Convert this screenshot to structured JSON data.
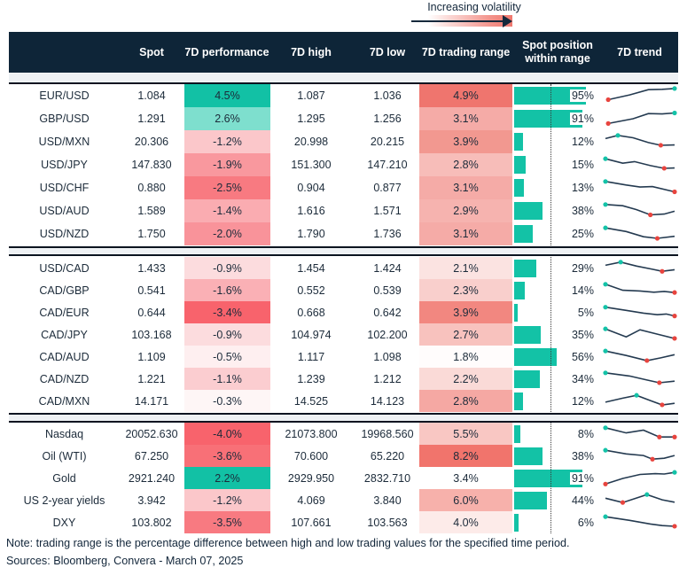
{
  "legend": {
    "label": "Increasing volatility"
  },
  "colors": {
    "header_bg": "#0e2538",
    "text": "#1c2b3a",
    "bar_teal": "#13c2a6",
    "spark_line": "#243a50",
    "spark_high_dot": "#14c3a8",
    "spark_low_dot": "#e8443e",
    "divider_band": "#eef1f4",
    "volatility_gradient": [
      "#ffffff",
      "#fbd8d5",
      "#f7b6b1",
      "#f3928a",
      "#f0776e"
    ]
  },
  "chart_data": {
    "type": "table",
    "columns": [
      "",
      "Spot",
      "7D performance",
      "7D high",
      "7D low",
      "7D trading range",
      "Spot position within range",
      "7D trend"
    ],
    "sections": [
      {
        "rows": [
          {
            "asset": "EUR/USD",
            "spot": "1.084",
            "perf": "4.5%",
            "perf_color": "#12c1a5",
            "high": "1.087",
            "low": "1.036",
            "range": "4.9%",
            "range_color": "#ef756e",
            "pos": "95%",
            "spark": [
              [
                0.04,
                0.75
              ],
              [
                0.35,
                0.45
              ],
              [
                0.62,
                0.12
              ],
              [
                0.82,
                0.1
              ],
              [
                1,
                0.05
              ]
            ]
          },
          {
            "asset": "GBP/USD",
            "spot": "1.291",
            "perf": "2.6%",
            "perf_color": "#7edfce",
            "high": "1.295",
            "low": "1.256",
            "range": "3.1%",
            "range_color": "#f5aba7",
            "pos": "91%",
            "spark": [
              [
                0.04,
                0.8
              ],
              [
                0.4,
                0.5
              ],
              [
                0.62,
                0.18
              ],
              [
                0.82,
                0.2
              ],
              [
                1,
                0.14
              ]
            ]
          },
          {
            "asset": "USD/MXN",
            "spot": "20.306",
            "perf": "-1.2%",
            "perf_color": "#fbc7ca",
            "high": "20.998",
            "low": "20.215",
            "range": "3.9%",
            "range_color": "#f29890",
            "pos": "12%",
            "spark": [
              [
                0,
                0.3
              ],
              [
                0.18,
                0.1
              ],
              [
                0.4,
                0.25
              ],
              [
                0.62,
                0.55
              ],
              [
                0.8,
                0.72
              ],
              [
                1,
                0.7
              ]
            ]
          },
          {
            "asset": "USD/JPY",
            "spot": "147.830",
            "perf": "-1.9%",
            "perf_color": "#f9989e",
            "high": "151.300",
            "low": "147.210",
            "range": "2.8%",
            "range_color": "#f7bdb9",
            "pos": "15%",
            "spark": [
              [
                0,
                0.12
              ],
              [
                0.25,
                0.4
              ],
              [
                0.42,
                0.3
              ],
              [
                0.65,
                0.55
              ],
              [
                0.85,
                0.72
              ],
              [
                1,
                0.7
              ]
            ]
          },
          {
            "asset": "USD/CHF",
            "spot": "0.880",
            "perf": "-2.5%",
            "perf_color": "#f87a81",
            "high": "0.904",
            "low": "0.877",
            "range": "3.1%",
            "range_color": "#f5aba7",
            "pos": "13%",
            "spark": [
              [
                0,
                0.1
              ],
              [
                0.3,
                0.32
              ],
              [
                0.5,
                0.45
              ],
              [
                0.68,
                0.42
              ],
              [
                1,
                0.75
              ]
            ]
          },
          {
            "asset": "USD/AUD",
            "spot": "1.589",
            "perf": "-1.4%",
            "perf_color": "#faacb1",
            "high": "1.616",
            "low": "1.571",
            "range": "2.9%",
            "range_color": "#f6b3af",
            "pos": "38%",
            "spark": [
              [
                0,
                0.1
              ],
              [
                0.25,
                0.18
              ],
              [
                0.45,
                0.42
              ],
              [
                0.65,
                0.75
              ],
              [
                0.85,
                0.7
              ],
              [
                1,
                0.52
              ]
            ]
          },
          {
            "asset": "USD/NZD",
            "spot": "1.750",
            "perf": "-2.0%",
            "perf_color": "#f9939a",
            "high": "1.790",
            "low": "1.736",
            "range": "3.1%",
            "range_color": "#f5aba7",
            "pos": "25%",
            "spark": [
              [
                0,
                0.12
              ],
              [
                0.3,
                0.35
              ],
              [
                0.55,
                0.68
              ],
              [
                0.75,
                0.78
              ],
              [
                1,
                0.65
              ]
            ]
          }
        ]
      },
      {
        "rows": [
          {
            "asset": "USD/CAD",
            "spot": "1.433",
            "perf": "-0.9%",
            "perf_color": "#fcdcde",
            "high": "1.454",
            "low": "1.424",
            "range": "2.1%",
            "range_color": "#fbe3e1",
            "pos": "29%",
            "spark": [
              [
                0,
                0.3
              ],
              [
                0.22,
                0.1
              ],
              [
                0.45,
                0.35
              ],
              [
                0.68,
                0.55
              ],
              [
                0.82,
                0.68
              ],
              [
                1,
                0.58
              ]
            ]
          },
          {
            "asset": "CAD/GBP",
            "spot": "0.541",
            "perf": "-1.6%",
            "perf_color": "#fab0b5",
            "high": "0.552",
            "low": "0.539",
            "range": "2.3%",
            "range_color": "#f9cfcc",
            "pos": "14%",
            "spark": [
              [
                0,
                0.1
              ],
              [
                0.25,
                0.48
              ],
              [
                0.5,
                0.52
              ],
              [
                0.7,
                0.6
              ],
              [
                0.85,
                0.55
              ],
              [
                1,
                0.62
              ]
            ]
          },
          {
            "asset": "CAD/EUR",
            "spot": "0.644",
            "perf": "-3.4%",
            "perf_color": "#f8636c",
            "high": "0.668",
            "low": "0.642",
            "range": "3.9%",
            "range_color": "#f28780",
            "pos": "5%",
            "spark": [
              [
                0,
                0.15
              ],
              [
                0.3,
                0.35
              ],
              [
                0.55,
                0.52
              ],
              [
                0.75,
                0.62
              ],
              [
                0.88,
                0.58
              ],
              [
                1,
                0.7
              ]
            ]
          },
          {
            "asset": "CAD/JPY",
            "spot": "103.168",
            "perf": "-0.9%",
            "perf_color": "#fcdcde",
            "high": "104.974",
            "low": "102.200",
            "range": "2.7%",
            "range_color": "#f8c2be",
            "pos": "35%",
            "spark": [
              [
                0,
                0.12
              ],
              [
                0.3,
                0.62
              ],
              [
                0.5,
                0.18
              ],
              [
                0.75,
                0.45
              ],
              [
                1,
                0.72
              ]
            ]
          },
          {
            "asset": "CAD/AUD",
            "spot": "1.109",
            "perf": "-0.5%",
            "perf_color": "#feeff0",
            "high": "1.117",
            "low": "1.098",
            "range": "1.8%",
            "range_color": "#fffcfc",
            "pos": "56%",
            "spark": [
              [
                0,
                0.12
              ],
              [
                0.3,
                0.4
              ],
              [
                0.6,
                0.72
              ],
              [
                0.8,
                0.55
              ],
              [
                1,
                0.35
              ]
            ]
          },
          {
            "asset": "CAD/NZD",
            "spot": "1.221",
            "perf": "-1.1%",
            "perf_color": "#fbcdd0",
            "high": "1.239",
            "low": "1.212",
            "range": "2.2%",
            "range_color": "#fadad7",
            "pos": "34%",
            "spark": [
              [
                0,
                0.1
              ],
              [
                0.35,
                0.3
              ],
              [
                0.6,
                0.55
              ],
              [
                0.78,
                0.72
              ],
              [
                1,
                0.62
              ]
            ]
          },
          {
            "asset": "CAD/MXN",
            "spot": "14.171",
            "perf": "-0.3%",
            "perf_color": "#fef6f6",
            "high": "14.525",
            "low": "14.123",
            "range": "2.8%",
            "range_color": "#f5a8a3",
            "pos": "12%",
            "spark": [
              [
                0,
                0.55
              ],
              [
                0.25,
                0.3
              ],
              [
                0.45,
                0.12
              ],
              [
                0.65,
                0.45
              ],
              [
                0.82,
                0.72
              ],
              [
                1,
                0.62
              ]
            ]
          }
        ]
      },
      {
        "rows": [
          {
            "asset": "Nasdaq",
            "spot": "20052.630",
            "perf": "-4.0%",
            "perf_color": "#f8636c",
            "high": "21073.800",
            "low": "19968.560",
            "range": "5.5%",
            "range_color": "#f9c7c3",
            "pos": "8%",
            "spark": [
              [
                0,
                0.1
              ],
              [
                0.3,
                0.42
              ],
              [
                0.55,
                0.25
              ],
              [
                0.78,
                0.68
              ],
              [
                1,
                0.68
              ]
            ]
          },
          {
            "asset": "Oil (WTI)",
            "spot": "67.250",
            "perf": "-3.6%",
            "perf_color": "#f87077",
            "high": "70.600",
            "low": "65.220",
            "range": "8.2%",
            "range_color": "#f1746c",
            "pos": "38%",
            "spark": [
              [
                0,
                0.12
              ],
              [
                0.3,
                0.35
              ],
              [
                0.55,
                0.45
              ],
              [
                0.68,
                0.68
              ],
              [
                0.85,
                0.62
              ],
              [
                1,
                0.45
              ]
            ]
          },
          {
            "asset": "Gold",
            "spot": "2921.240",
            "perf": "2.2%",
            "perf_color": "#12c1a5",
            "high": "2929.950",
            "low": "2832.710",
            "range": "3.4%",
            "range_color": "#ffffff",
            "pos": "91%",
            "spark": [
              [
                0,
                0.85
              ],
              [
                0.25,
                0.5
              ],
              [
                0.5,
                0.25
              ],
              [
                0.72,
                0.2
              ],
              [
                0.85,
                0.22
              ],
              [
                1,
                0.12
              ]
            ]
          },
          {
            "asset": "US 2-year yields",
            "spot": "3.942",
            "perf": "-1.2%",
            "perf_color": "#fbc7ca",
            "high": "4.069",
            "low": "3.840",
            "range": "6.0%",
            "range_color": "#f7b1ab",
            "pos": "44%",
            "spark": [
              [
                0,
                0.35
              ],
              [
                0.25,
                0.62
              ],
              [
                0.6,
                0.12
              ],
              [
                0.82,
                0.45
              ],
              [
                1,
                0.6
              ]
            ]
          },
          {
            "asset": "DXY",
            "spot": "103.802",
            "perf": "-3.5%",
            "perf_color": "#f87a81",
            "high": "107.661",
            "low": "103.563",
            "range": "4.0%",
            "range_color": "#fdebe9",
            "pos": "6%",
            "spark": [
              [
                0,
                0.12
              ],
              [
                0.35,
                0.35
              ],
              [
                0.65,
                0.58
              ],
              [
                0.82,
                0.68
              ],
              [
                1,
                0.72
              ]
            ]
          }
        ]
      }
    ]
  },
  "footer": {
    "note": "Note: trading range is the percentage difference between high and low trading values for the specified time period.",
    "sources": "Sources: Bloomberg, Convera - March 07, 2025"
  }
}
